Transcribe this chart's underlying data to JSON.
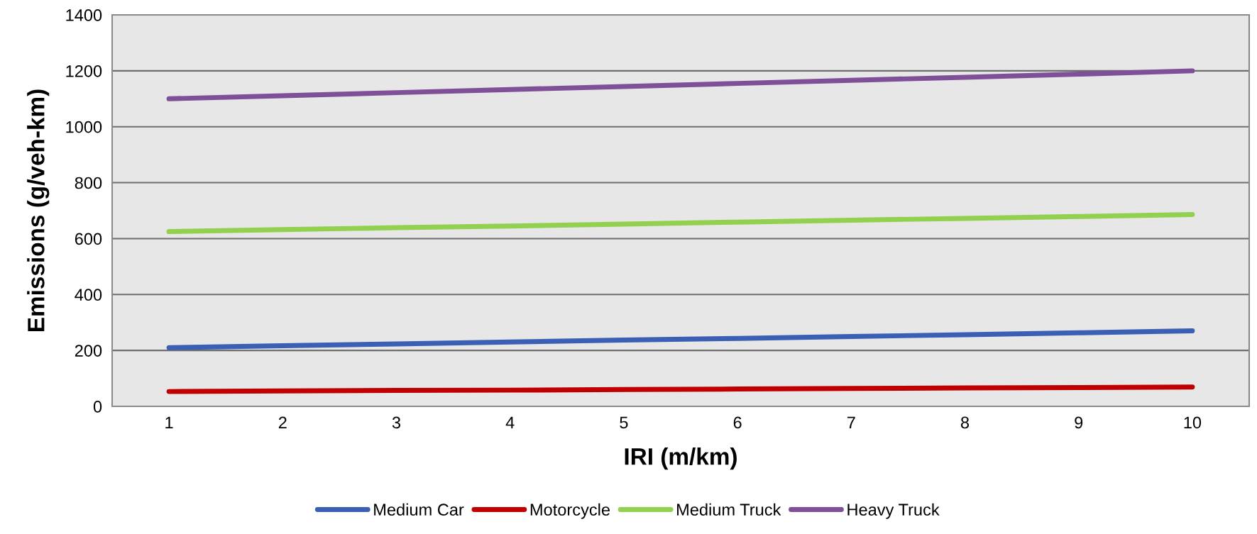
{
  "chart_data": {
    "type": "line",
    "xlabel": "IRI (m/km)",
    "ylabel": "Emissions (g/veh-km)",
    "categories": [
      "1",
      "2",
      "3",
      "4",
      "5",
      "6",
      "7",
      "8",
      "9",
      "10"
    ],
    "series": [
      {
        "name": "Medium Car",
        "color": "#3a5fb4",
        "values": [
          210,
          217,
          223,
          230,
          237,
          243,
          250,
          256,
          263,
          270
        ]
      },
      {
        "name": "Motorcycle",
        "color": "#c00000",
        "values": [
          53,
          55,
          57,
          58,
          60,
          62,
          64,
          66,
          67,
          69
        ]
      },
      {
        "name": "Medium Truck",
        "color": "#92d050",
        "values": [
          625,
          632,
          639,
          645,
          652,
          659,
          666,
          672,
          679,
          686
        ]
      },
      {
        "name": "Heavy Truck",
        "color": "#7f4f98",
        "values": [
          1100,
          1111,
          1122,
          1133,
          1144,
          1155,
          1166,
          1177,
          1188,
          1200
        ]
      }
    ],
    "ylim": [
      0,
      1400
    ],
    "yticks": [
      0,
      200,
      400,
      600,
      800,
      1000,
      1200,
      1400
    ],
    "grid": "y",
    "legend": "bottom",
    "marker": "none",
    "line_style": "solid"
  }
}
